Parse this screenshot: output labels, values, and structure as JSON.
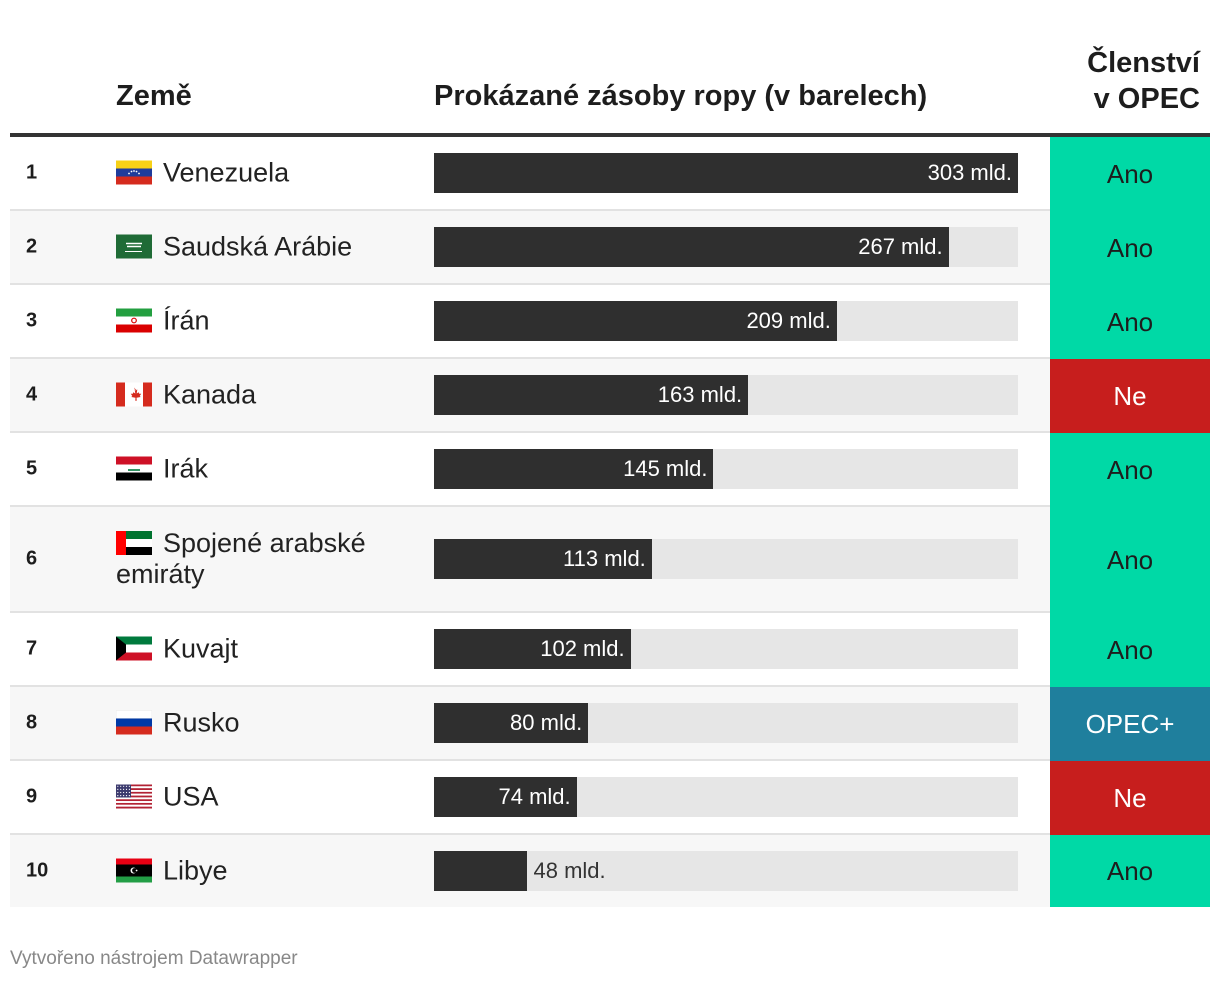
{
  "header": {
    "country": "Země",
    "bar": "Prokázané zásoby ropy (v barelech)",
    "opec_line1": "Členství",
    "opec_line2": "v OPEC"
  },
  "footer": "Vytvořeno nástrojem Datawrapper",
  "colors": {
    "bar": "#2f2f2f",
    "bar_track": "#e6e6e6",
    "opec_yes": "#00d9a6",
    "opec_no": "#c71e1d",
    "opec_plus": "#1f7f9d"
  },
  "chart_data": {
    "type": "table",
    "columns": [
      "Země",
      "Prokázané zásoby ropy (v barelech)",
      "Členství v OPEC"
    ],
    "x_max": 303,
    "rows": [
      {
        "rank": "1",
        "country": "Venezuela",
        "flag": "venezuela-flag-icon",
        "value": 303,
        "label": "303 mld.",
        "opec": "Ano",
        "status": "yes"
      },
      {
        "rank": "2",
        "country": "Saudská Arábie",
        "flag": "saudi-arabia-flag-icon",
        "value": 267,
        "label": "267 mld.",
        "opec": "Ano",
        "status": "yes"
      },
      {
        "rank": "3",
        "country": "Írán",
        "flag": "iran-flag-icon",
        "value": 209,
        "label": "209 mld.",
        "opec": "Ano",
        "status": "yes"
      },
      {
        "rank": "4",
        "country": "Kanada",
        "flag": "canada-flag-icon",
        "value": 163,
        "label": "163 mld.",
        "opec": "Ne",
        "status": "no"
      },
      {
        "rank": "5",
        "country": "Irák",
        "flag": "iraq-flag-icon",
        "value": 145,
        "label": "145 mld.",
        "opec": "Ano",
        "status": "yes"
      },
      {
        "rank": "6",
        "country": "Spojené arabské emiráty",
        "flag": "uae-flag-icon",
        "value": 113,
        "label": "113 mld.",
        "opec": "Ano",
        "status": "yes"
      },
      {
        "rank": "7",
        "country": "Kuvajt",
        "flag": "kuwait-flag-icon",
        "value": 102,
        "label": "102 mld.",
        "opec": "Ano",
        "status": "yes"
      },
      {
        "rank": "8",
        "country": "Rusko",
        "flag": "russia-flag-icon",
        "value": 80,
        "label": "80 mld.",
        "opec": "OPEC+",
        "status": "plus"
      },
      {
        "rank": "9",
        "country": "USA",
        "flag": "usa-flag-icon",
        "value": 74,
        "label": "74 mld.",
        "opec": "Ne",
        "status": "no"
      },
      {
        "rank": "10",
        "country": "Libye",
        "flag": "libya-flag-icon",
        "value": 48,
        "label": "48 mld.",
        "opec": "Ano",
        "status": "yes"
      }
    ]
  }
}
